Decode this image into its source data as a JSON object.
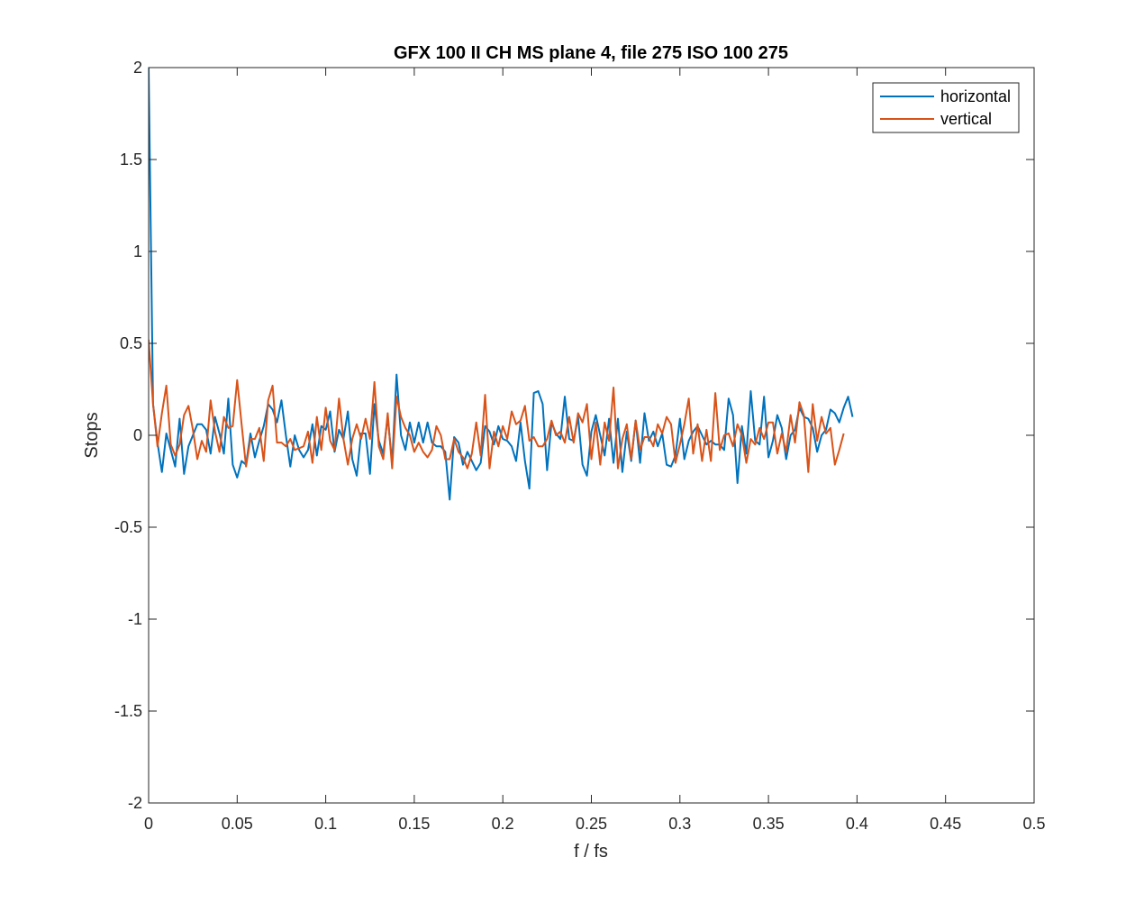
{
  "chart_data": {
    "type": "line",
    "title": "GFX 100 II CH MS plane 4, file 275 ISO 100 275",
    "xlabel": "f / fs",
    "ylabel": "Stops",
    "xlim": [
      0,
      0.5
    ],
    "ylim": [
      -2,
      2
    ],
    "xticks": [
      0,
      0.05,
      0.1,
      0.15,
      0.2,
      0.25,
      0.3,
      0.35,
      0.4,
      0.45,
      0.5
    ],
    "xtick_labels": [
      "0",
      "0.05",
      "0.1",
      "0.15",
      "0.2",
      "0.25",
      "0.3",
      "0.35",
      "0.4",
      "0.45",
      "0.5"
    ],
    "yticks": [
      -2,
      -1.5,
      -1,
      -0.5,
      0,
      0.5,
      1,
      1.5,
      2
    ],
    "ytick_labels": [
      "-2",
      "-1.5",
      "-1",
      "-0.5",
      "0",
      "0.5",
      "1",
      "1.5",
      "2"
    ],
    "grid": false,
    "legend_position": "top-right",
    "x_step": 0.0025,
    "series": [
      {
        "name": "horizontal",
        "color": "#0072BD",
        "values": [
          2.0,
          0.17,
          -0.04,
          -0.2,
          0.01,
          -0.08,
          -0.17,
          0.09,
          -0.21,
          -0.06,
          0.0,
          0.06,
          0.06,
          0.03,
          -0.1,
          0.1,
          0.01,
          -0.1,
          0.2,
          -0.16,
          -0.23,
          -0.14,
          -0.16,
          0.01,
          -0.12,
          -0.03,
          0.05,
          0.17,
          0.14,
          0.07,
          0.19,
          0.0,
          -0.17,
          0.0,
          -0.08,
          -0.12,
          -0.08,
          0.06,
          -0.11,
          0.05,
          0.03,
          0.13,
          -0.09,
          0.03,
          -0.02,
          0.13,
          -0.13,
          -0.22,
          0.01,
          0.01,
          -0.21,
          0.17,
          -0.03,
          -0.1,
          0.1,
          -0.15,
          0.33,
          0.0,
          -0.08,
          0.07,
          -0.04,
          0.07,
          -0.04,
          0.07,
          -0.04,
          -0.06,
          -0.06,
          -0.09,
          -0.35,
          -0.01,
          -0.04,
          -0.16,
          -0.09,
          -0.14,
          -0.19,
          -0.15,
          0.05,
          0.02,
          -0.05,
          0.05,
          -0.02,
          -0.03,
          -0.06,
          -0.14,
          0.07,
          -0.14,
          -0.29,
          0.23,
          0.24,
          0.17,
          -0.19,
          0.07,
          0.01,
          -0.02,
          0.21,
          -0.02,
          -0.03,
          0.1,
          -0.16,
          -0.22,
          0.02,
          0.11,
          0.0,
          -0.11,
          0.09,
          -0.15,
          0.09,
          -0.2,
          0.02,
          -0.14,
          0.08,
          -0.15,
          0.12,
          -0.03,
          0.02,
          -0.06,
          0.01,
          -0.16,
          -0.17,
          -0.11,
          0.09,
          -0.13,
          -0.03,
          0.02,
          0.05,
          0.0,
          -0.05,
          -0.03,
          -0.05,
          -0.05,
          -0.08,
          0.2,
          0.11,
          -0.26,
          0.05,
          -0.1,
          0.24,
          -0.03,
          -0.05,
          0.21,
          -0.12,
          -0.03,
          0.11,
          0.04,
          -0.13,
          0.0,
          0.03,
          0.15,
          0.1,
          0.09,
          0.04,
          -0.09,
          0.0,
          0.03,
          0.14,
          0.12,
          0.07,
          0.15,
          0.21,
          0.1
        ]
      },
      {
        "name": "vertical",
        "color": "#D95319",
        "values": [
          0.52,
          0.17,
          -0.06,
          0.12,
          0.27,
          -0.05,
          -0.11,
          -0.05,
          0.11,
          0.16,
          0.03,
          -0.13,
          -0.03,
          -0.09,
          0.19,
          0.02,
          -0.09,
          0.1,
          0.04,
          0.05,
          0.3,
          0.06,
          -0.17,
          -0.02,
          -0.02,
          0.04,
          -0.14,
          0.19,
          0.27,
          -0.04,
          -0.04,
          -0.06,
          -0.02,
          -0.08,
          -0.07,
          -0.06,
          0.02,
          -0.15,
          0.1,
          -0.08,
          0.15,
          -0.03,
          -0.08,
          0.2,
          -0.02,
          -0.16,
          -0.02,
          0.06,
          -0.02,
          0.09,
          -0.02,
          0.29,
          -0.06,
          -0.13,
          0.12,
          -0.18,
          0.21,
          0.1,
          0.04,
          0.0,
          -0.09,
          -0.04,
          -0.09,
          -0.12,
          -0.08,
          0.05,
          0.0,
          -0.13,
          -0.13,
          -0.02,
          -0.09,
          -0.12,
          -0.18,
          -0.1,
          0.07,
          -0.11,
          0.22,
          -0.18,
          0.02,
          -0.06,
          0.05,
          -0.02,
          0.13,
          0.06,
          0.08,
          0.16,
          -0.03,
          -0.01,
          -0.06,
          -0.06,
          -0.02,
          0.08,
          0.0,
          0.02,
          -0.04,
          0.1,
          -0.04,
          0.12,
          0.07,
          0.17,
          -0.13,
          0.07,
          -0.16,
          0.07,
          -0.03,
          0.26,
          -0.18,
          -0.02,
          0.06,
          -0.13,
          0.08,
          -0.08,
          -0.01,
          -0.01,
          -0.06,
          0.06,
          0.01,
          0.1,
          0.06,
          -0.15,
          -0.05,
          0.06,
          0.2,
          -0.1,
          0.06,
          -0.14,
          0.03,
          -0.14,
          0.23,
          -0.08,
          0.0,
          0.01,
          -0.06,
          0.06,
          0.0,
          -0.15,
          -0.02,
          -0.05,
          0.04,
          -0.02,
          0.07,
          0.07,
          -0.1,
          0.01,
          -0.09,
          0.11,
          -0.04,
          0.18,
          0.11,
          -0.2,
          0.17,
          -0.03,
          0.1,
          0.01,
          0.04,
          -0.16,
          -0.08,
          0.01
        ]
      }
    ]
  }
}
